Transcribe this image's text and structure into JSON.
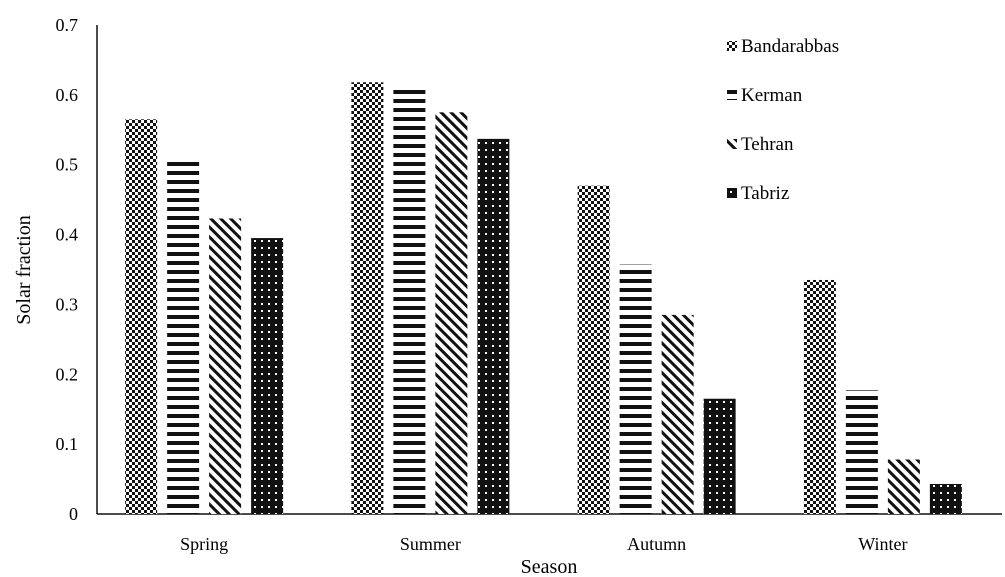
{
  "chart_data": {
    "type": "bar",
    "title": "",
    "xlabel": "Season",
    "ylabel": "Solar fraction",
    "categories": [
      "Spring",
      "Summer",
      "Autumn",
      "Winter"
    ],
    "series": [
      {
        "name": "Bandarabbas",
        "values": [
          0.565,
          0.618,
          0.47,
          0.335
        ],
        "pattern": "checker"
      },
      {
        "name": "Kerman",
        "values": [
          0.507,
          0.613,
          0.357,
          0.177
        ],
        "pattern": "hlines"
      },
      {
        "name": "Tehran",
        "values": [
          0.423,
          0.575,
          0.285,
          0.078
        ],
        "pattern": "diag"
      },
      {
        "name": "Tabriz",
        "values": [
          0.395,
          0.537,
          0.165,
          0.043
        ],
        "pattern": "dots"
      }
    ],
    "ylim": [
      0,
      0.7
    ],
    "yticks": [
      "0",
      "0.1",
      "0.2",
      "0.3",
      "0.4",
      "0.5",
      "0.6",
      "0.7"
    ],
    "grid": false,
    "legend_position": "top-right",
    "colors": {
      "ink": "#111111",
      "background": "#ffffff"
    }
  }
}
